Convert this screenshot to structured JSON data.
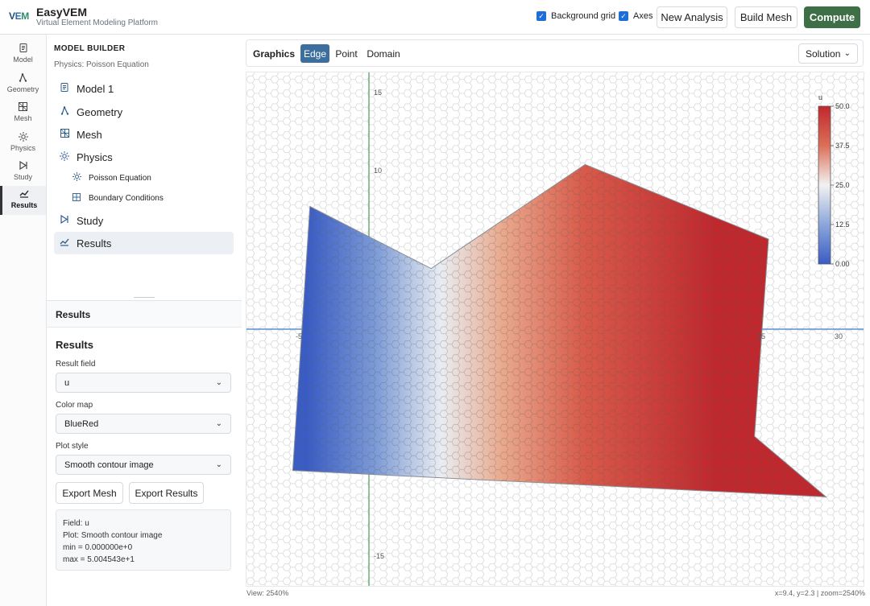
{
  "header": {
    "logo": "VEM",
    "title": "EasyVEM",
    "subtitle": "Virtual Element Modeling Platform",
    "toggles": [
      {
        "label": "Background grid",
        "checked": true
      },
      {
        "label": "Axes",
        "checked": true
      }
    ],
    "buttons": {
      "new_analysis": "New Analysis",
      "build_mesh": "Build Mesh",
      "compute": "Compute"
    },
    "accent": "#3f6f47"
  },
  "rail": {
    "items": [
      {
        "label": "Model",
        "icon": "document-icon"
      },
      {
        "label": "Geometry",
        "icon": "geometry-icon"
      },
      {
        "label": "Mesh",
        "icon": "mesh-icon"
      },
      {
        "label": "Physics",
        "icon": "sun-icon"
      },
      {
        "label": "Study",
        "icon": "play-icon"
      },
      {
        "label": "Results",
        "icon": "chart-icon",
        "active": true
      }
    ]
  },
  "builder": {
    "title": "MODEL BUILDER",
    "subtitle": "Physics: Poisson Equation",
    "tree": [
      {
        "label": "Model 1",
        "icon": "document-icon",
        "level": 1
      },
      {
        "label": "Geometry",
        "icon": "geometry-icon",
        "level": 1
      },
      {
        "label": "Mesh",
        "icon": "mesh-icon",
        "level": 1
      },
      {
        "label": "Physics",
        "icon": "sun-icon",
        "level": 1
      },
      {
        "label": "Poisson Equation",
        "icon": "sun-icon",
        "level": 2
      },
      {
        "label": "Boundary Conditions",
        "icon": "mesh-icon",
        "level": 2
      },
      {
        "label": "Study",
        "icon": "play-icon",
        "level": 1
      },
      {
        "label": "Results",
        "icon": "chart-icon",
        "level": 1,
        "active": true
      }
    ]
  },
  "results": {
    "header": "Results",
    "title": "Results",
    "result_field": {
      "label": "Result field",
      "value": "u"
    },
    "color_map": {
      "label": "Color map",
      "value": "BlueRed"
    },
    "plot_style": {
      "label": "Plot style",
      "value": "Smooth contour image"
    },
    "export_mesh": "Export Mesh",
    "export_results": "Export Results",
    "info": {
      "field": "Field: u",
      "plot": "Plot: Smooth contour image",
      "min": "min = 0.000000e+0",
      "max": "max = 5.004543e+1"
    }
  },
  "graphics": {
    "title": "Graphics",
    "modes": [
      "Edge",
      "Point",
      "Domain"
    ],
    "active_mode": "Edge",
    "solution_select": "Solution",
    "status_left": "View: 2540%",
    "status_right": "x=9.4, y=2.3 | zoom=2540%",
    "axis_ticks_x": [
      "-5",
      "25",
      "30"
    ],
    "axis_ticks_y": [
      "15",
      "10",
      "-15"
    ],
    "colorbar": {
      "title": "u",
      "ticks": [
        "50.0",
        "37.5",
        "25.0",
        "12.5",
        "0.00"
      ],
      "min_color": "#3a5cc5",
      "mid_color": "#f2f2f2",
      "max_color": "#c0282e"
    },
    "domain_polygon_world": [
      [
        -3.8,
        7.9
      ],
      [
        4.0,
        3.9
      ],
      [
        13.9,
        10.6
      ],
      [
        25.7,
        5.8
      ],
      [
        24.8,
        -6.9
      ],
      [
        29.4,
        -10.8
      ],
      [
        -4.9,
        -9.1
      ]
    ]
  }
}
